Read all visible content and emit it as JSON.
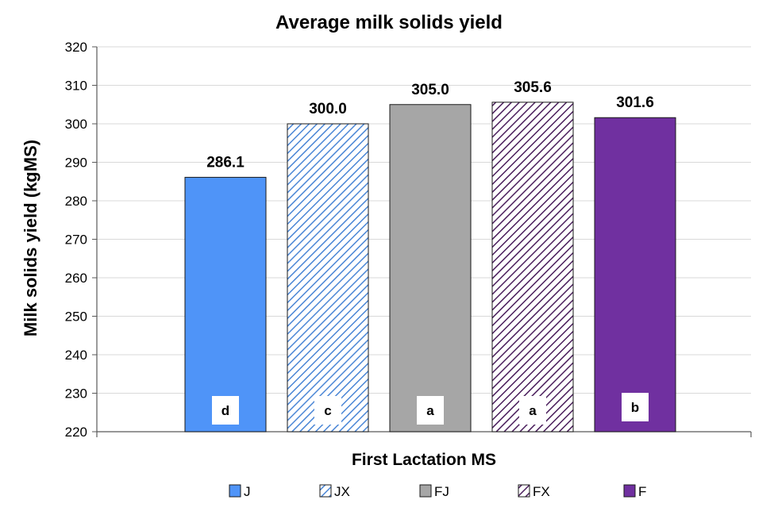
{
  "chart_data": {
    "type": "bar",
    "title": "Average milk solids yield",
    "xlabel": "First Lactation MS",
    "ylabel": "Milk solids yield (kgMS)",
    "ylim": [
      220,
      320
    ],
    "yticks": [
      "220",
      "230",
      "240",
      "250",
      "260",
      "270",
      "280",
      "290",
      "300",
      "310",
      "320"
    ],
    "grid": true,
    "legend_position": "bottom",
    "categories": [
      "J",
      "JX",
      "FJ",
      "FX",
      "F"
    ],
    "series": [
      {
        "values": [
          286.1,
          300.0,
          305.0,
          305.6,
          301.6
        ],
        "data_labels": [
          "286.1",
          "300.0",
          "305.0",
          "305.6",
          "301.6"
        ],
        "significance_letters": [
          "d",
          "c",
          "a",
          "a",
          "b"
        ]
      }
    ],
    "bar_styles": [
      {
        "fill": "#4f94f8",
        "hatch": false,
        "hatch_color": ""
      },
      {
        "fill": "#ffffff",
        "hatch": true,
        "hatch_color": "#4a86d6"
      },
      {
        "fill": "#a6a6a6",
        "hatch": false,
        "hatch_color": ""
      },
      {
        "fill": "#ffffff",
        "hatch": true,
        "hatch_color": "#4a1e5c"
      },
      {
        "fill": "#7030a0",
        "hatch": false,
        "hatch_color": ""
      }
    ]
  }
}
